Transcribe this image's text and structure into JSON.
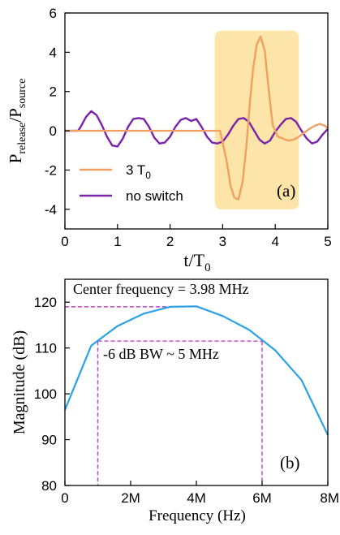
{
  "chart_data": [
    {
      "type": "line",
      "panel_label": "(a)",
      "xlabel": "t/T",
      "xlabel_sub": "0",
      "ylabel": "P",
      "ylabel_sub1": "release",
      "ylabel_mid": "/P",
      "ylabel_sub2": "source",
      "xlim": [
        0,
        5
      ],
      "ylim": [
        -5,
        6
      ],
      "xticks": [
        0,
        1,
        2,
        3,
        4,
        5
      ],
      "yticks": [
        -4,
        -2,
        0,
        2,
        4,
        6
      ],
      "highlight": {
        "x_start": 2.85,
        "x_end": 4.45,
        "color": "#fde4a8"
      },
      "legend_position": "bottom-left",
      "series": [
        {
          "name": "3 T",
          "name_sub": "0",
          "color": "#f0a060",
          "x": [
            0,
            2.95,
            3.0,
            3.08,
            3.15,
            3.22,
            3.3,
            3.38,
            3.45,
            3.52,
            3.58,
            3.65,
            3.72,
            3.8,
            3.88,
            3.95,
            4.05,
            4.15,
            4.25,
            4.35,
            4.45,
            4.55,
            4.65,
            4.75,
            4.85,
            4.95,
            5.0
          ],
          "y": [
            0,
            0,
            -0.6,
            -1.6,
            -2.8,
            -3.4,
            -3.5,
            -2.6,
            -0.8,
            1.5,
            3.2,
            4.4,
            4.8,
            4.1,
            2.0,
            0.3,
            -0.3,
            -0.4,
            -0.5,
            -0.45,
            -0.3,
            -0.1,
            0.1,
            0.25,
            0.35,
            0.25,
            0.1
          ]
        },
        {
          "name": "no switch",
          "color": "#7a22a8",
          "x": [
            0,
            0.25,
            0.3,
            0.4,
            0.5,
            0.6,
            0.7,
            0.8,
            0.9,
            1.0,
            1.1,
            1.2,
            1.3,
            1.4,
            1.5,
            1.6,
            1.7,
            1.8,
            1.9,
            2.0,
            2.1,
            2.2,
            2.3,
            2.4,
            2.5,
            2.6,
            2.7,
            2.8,
            2.9,
            3.0,
            3.1,
            3.2,
            3.3,
            3.4,
            3.5,
            3.6,
            3.7,
            3.8,
            3.9,
            4.0,
            4.1,
            4.2,
            4.3,
            4.4,
            4.5,
            4.6,
            4.7,
            4.8,
            4.9,
            5.0
          ],
          "y": [
            0,
            0,
            0.2,
            0.7,
            1.0,
            0.8,
            0.3,
            -0.3,
            -0.75,
            -0.8,
            -0.4,
            0.2,
            0.6,
            0.65,
            0.6,
            0.2,
            -0.35,
            -0.65,
            -0.6,
            -0.3,
            0.2,
            0.55,
            0.65,
            0.5,
            0.6,
            0.2,
            -0.3,
            -0.6,
            -0.65,
            -0.55,
            -0.2,
            0.25,
            0.6,
            0.65,
            0.45,
            0.0,
            -0.45,
            -0.65,
            -0.5,
            -0.05,
            0.3,
            0.6,
            0.65,
            0.45,
            0.0,
            -0.4,
            -0.65,
            -0.55,
            -0.2,
            0.1
          ]
        }
      ]
    },
    {
      "type": "line",
      "panel_label": "(b)",
      "xlabel": "Frequency (Hz)",
      "ylabel": "Magnitude (dB)",
      "xlim": [
        0,
        8000000
      ],
      "ylim": [
        80,
        125
      ],
      "xticks": [
        0,
        2000000,
        4000000,
        6000000,
        8000000
      ],
      "xtick_labels": [
        "0",
        "2M",
        "4M",
        "6M",
        "8M"
      ],
      "yticks": [
        80,
        90,
        100,
        110,
        120
      ],
      "annotations": {
        "center_text": "Center frequency = 3.98 MHz",
        "bw_text": "-6 dB BW ~ 5 MHz",
        "peak_db": 119,
        "bw_db": 111.5,
        "bw_low_hz": 1000000,
        "bw_high_hz": 6000000,
        "color": "#c040c0"
      },
      "series": [
        {
          "color": "#29a3e6",
          "x": [
            0,
            800000,
            1600000,
            2400000,
            3200000,
            4000000,
            4800000,
            5600000,
            6400000,
            7200000,
            8000000
          ],
          "y": [
            96.5,
            110.5,
            114.8,
            117.5,
            119.0,
            119.1,
            117.0,
            114.0,
            109.5,
            103.0,
            91.0
          ]
        }
      ]
    }
  ]
}
